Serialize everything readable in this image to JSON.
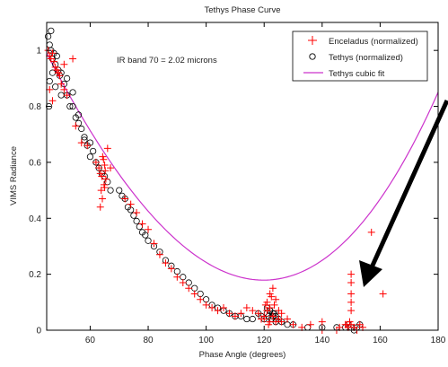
{
  "chart_data": {
    "type": "scatter",
    "title": "Tethys Phase Curve",
    "xlabel": "Phase Angle (degrees)",
    "ylabel": "VIMS Radiance",
    "xlim": [
      45,
      180
    ],
    "ylim": [
      0,
      1.1
    ],
    "xticks": [
      60,
      80,
      100,
      120,
      140,
      160,
      180
    ],
    "yticks": [
      0,
      0.2,
      0.4,
      0.6,
      0.8,
      1
    ],
    "annotation": "IR band 70 = 2.02 microns",
    "legend_position": "top-right",
    "colors": {
      "enceladus": "#ff0000",
      "tethys": "#000000",
      "fit": "#cc33cc",
      "arrow": "#000000"
    },
    "series": [
      {
        "name": "Enceladus (normalized)",
        "marker": "plus",
        "x": [
          45.5,
          46,
          46.5,
          47,
          47.5,
          48,
          48.5,
          49,
          49.5,
          50,
          51,
          52,
          54,
          46,
          47,
          49,
          51,
          55,
          57,
          59,
          62,
          63,
          63.5,
          64,
          64.3,
          64.6,
          65,
          65.4,
          66,
          67,
          63.8,
          64.8,
          65.2,
          63.5,
          64.2,
          65,
          72,
          74,
          76,
          78,
          80,
          82,
          84,
          86,
          88,
          90,
          92,
          94,
          96,
          98,
          100,
          102,
          104,
          106,
          108,
          110,
          112,
          114,
          116,
          118,
          119,
          120,
          120.5,
          121,
          121.5,
          122,
          122.5,
          123,
          123.5,
          124,
          125,
          126,
          121,
          122,
          123,
          124,
          125,
          122,
          123,
          120,
          121,
          126,
          128,
          130,
          133,
          136,
          140,
          146,
          148,
          148.5,
          149,
          149.5,
          150,
          151,
          152,
          153,
          154,
          150,
          150,
          150,
          150,
          150,
          157,
          161,
          140,
          145
        ],
        "y": [
          1.0,
          0.98,
          0.97,
          0.99,
          0.96,
          0.94,
          0.93,
          0.92,
          0.91,
          0.88,
          0.86,
          0.84,
          0.97,
          0.86,
          0.82,
          0.92,
          0.95,
          0.73,
          0.67,
          0.66,
          0.6,
          0.58,
          0.56,
          0.55,
          0.62,
          0.61,
          0.59,
          0.54,
          0.65,
          0.58,
          0.5,
          0.52,
          0.57,
          0.44,
          0.47,
          0.51,
          0.47,
          0.45,
          0.42,
          0.38,
          0.36,
          0.31,
          0.27,
          0.24,
          0.22,
          0.19,
          0.17,
          0.15,
          0.13,
          0.11,
          0.09,
          0.08,
          0.07,
          0.08,
          0.06,
          0.05,
          0.06,
          0.08,
          0.07,
          0.06,
          0.04,
          0.05,
          0.09,
          0.07,
          0.02,
          0.03,
          0.12,
          0.05,
          0.09,
          0.03,
          0.04,
          0.06,
          0.1,
          0.08,
          0.15,
          0.11,
          0.07,
          0.13,
          0.05,
          0.04,
          0.07,
          0.03,
          0.04,
          0.02,
          0.01,
          0.02,
          0.03,
          0.01,
          0.02,
          0.02,
          0.01,
          0.03,
          0.02,
          0.01,
          0.0,
          0.02,
          0.01,
          0.07,
          0.1,
          0.13,
          0.17,
          0.2,
          0.35,
          0.13,
          0.0,
          0.0
        ]
      },
      {
        "name": "Tethys (normalized)",
        "marker": "circle",
        "x": [
          45.5,
          46,
          46.5,
          47,
          47.5,
          48,
          48.5,
          49,
          49.5,
          50,
          51,
          52,
          53,
          54,
          55,
          56,
          57,
          58,
          59,
          60,
          61,
          62,
          63,
          64,
          65,
          66,
          67,
          46,
          47,
          48,
          50,
          52,
          54,
          56,
          58,
          60,
          45.8,
          46.5,
          70,
          71,
          72,
          73,
          74,
          75,
          76,
          77,
          78,
          79,
          80,
          82,
          84,
          86,
          88,
          90,
          92,
          94,
          96,
          98,
          100,
          102,
          104,
          106,
          108,
          110,
          112,
          114,
          116,
          118,
          119,
          120,
          121,
          121.5,
          122,
          122.5,
          123,
          123.5,
          124,
          125,
          126,
          128,
          130,
          135,
          140,
          145,
          148,
          149,
          150,
          151,
          152,
          153,
          121,
          122,
          123,
          124
        ],
        "y": [
          1.05,
          1.02,
          1.0,
          0.97,
          0.99,
          0.95,
          0.98,
          0.93,
          0.91,
          0.92,
          0.88,
          0.84,
          0.8,
          0.85,
          0.76,
          0.74,
          0.72,
          0.69,
          0.66,
          0.67,
          0.64,
          0.6,
          0.58,
          0.56,
          0.55,
          0.53,
          0.5,
          0.89,
          0.92,
          0.87,
          0.84,
          0.9,
          0.8,
          0.77,
          0.68,
          0.62,
          0.8,
          1.07,
          0.5,
          0.48,
          0.47,
          0.44,
          0.43,
          0.41,
          0.39,
          0.37,
          0.35,
          0.34,
          0.32,
          0.3,
          0.28,
          0.25,
          0.23,
          0.21,
          0.19,
          0.17,
          0.15,
          0.13,
          0.11,
          0.09,
          0.08,
          0.07,
          0.06,
          0.05,
          0.05,
          0.04,
          0.04,
          0.06,
          0.05,
          0.04,
          0.06,
          0.05,
          0.07,
          0.04,
          0.05,
          0.06,
          0.03,
          0.04,
          0.03,
          0.02,
          0.02,
          0.01,
          0.01,
          0.01,
          0.01,
          0.02,
          0.01,
          0.0,
          0.01,
          0.02,
          0.08,
          0.07,
          0.06,
          0.05
        ]
      },
      {
        "name": "Tethys cubic fit",
        "marker": "line",
        "coeffs": [
          0.99,
          -0.02,
          0.0001,
          3e-07
        ]
      }
    ]
  }
}
